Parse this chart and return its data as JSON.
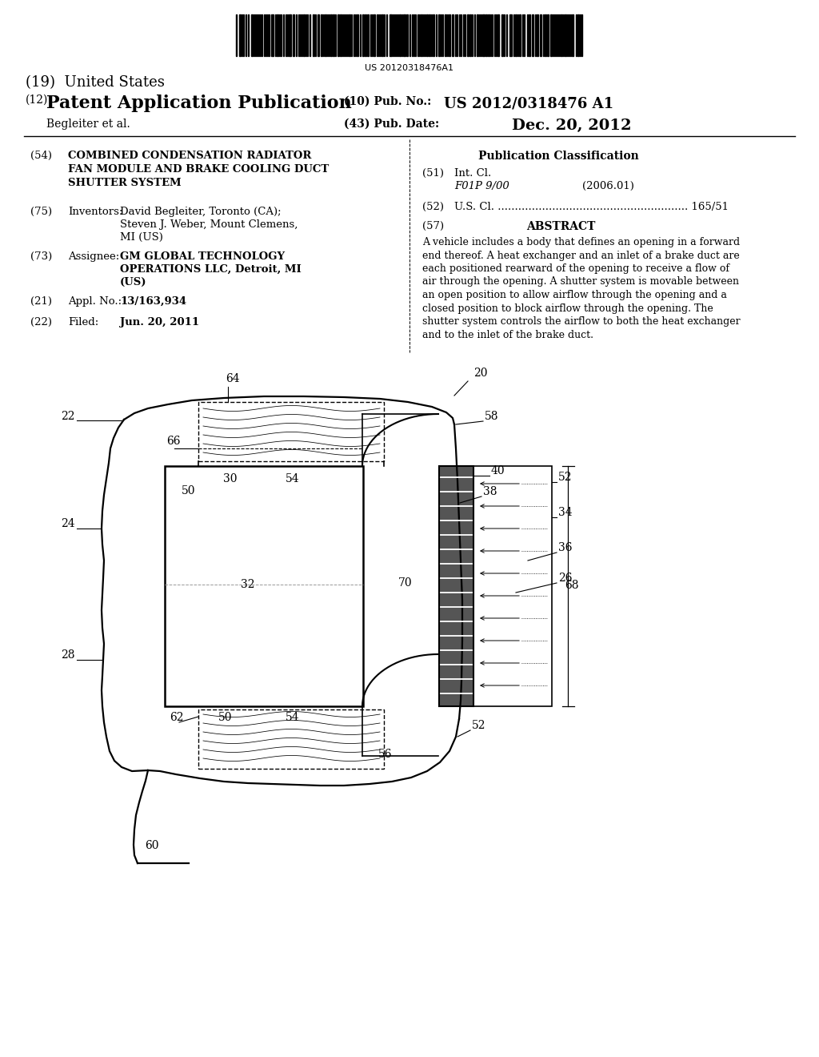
{
  "background_color": "#ffffff",
  "barcode_text": "US 20120318476A1",
  "title_19": "(19)  United States",
  "title_12_label": "(12)",
  "title_12_text": "Patent Application Publication",
  "pub_no_label": "(10) Pub. No.:",
  "pub_no_value": "US 2012/0318476 A1",
  "author": "Begleiter et al.",
  "pub_date_label": "(43) Pub. Date:",
  "pub_date_value": "Dec. 20, 2012",
  "field54_label": "(54)",
  "field54_text": "COMBINED CONDENSATION RADIATOR\nFAN MODULE AND BRAKE COOLING DUCT\nSHUTTER SYSTEM",
  "field75_label": "(75)",
  "field75_name": "Inventors:",
  "field75_inventors": "David Begleiter, Toronto (CA);\nSteven J. Weber, Mount Clemens,\nMI (US)",
  "field73_label": "(73)",
  "field73_name": "Assignee:",
  "field73_assignee": "GM GLOBAL TECHNOLOGY\nOPERATIONS LLC, Detroit, MI\n(US)",
  "field21_label": "(21)",
  "field21_name": "Appl. No.:",
  "field21_value": "13/163,934",
  "field22_label": "(22)",
  "field22_name": "Filed:",
  "field22_value": "Jun. 20, 2011",
  "pub_class_title": "Publication Classification",
  "field51_label": "(51)",
  "field51_name": "Int. Cl.",
  "field51_class": "F01P 9/00",
  "field51_year": "(2006.01)",
  "field52_label": "(52)",
  "field52_text": "U.S. Cl. ........................................................ 165/51",
  "field57_label": "(57)",
  "field57_title": "ABSTRACT",
  "abstract_text": "A vehicle includes a body that defines an opening in a forward\nend thereof. A heat exchanger and an inlet of a brake duct are\neach positioned rearward of the opening to receive a flow of\nair through the opening. A shutter system is movable between\nan open position to allow airflow through the opening and a\nclosed position to block airflow through the opening. The\nshutter system controls the airflow to both the heat exchanger\nand to the inlet of the brake duct."
}
